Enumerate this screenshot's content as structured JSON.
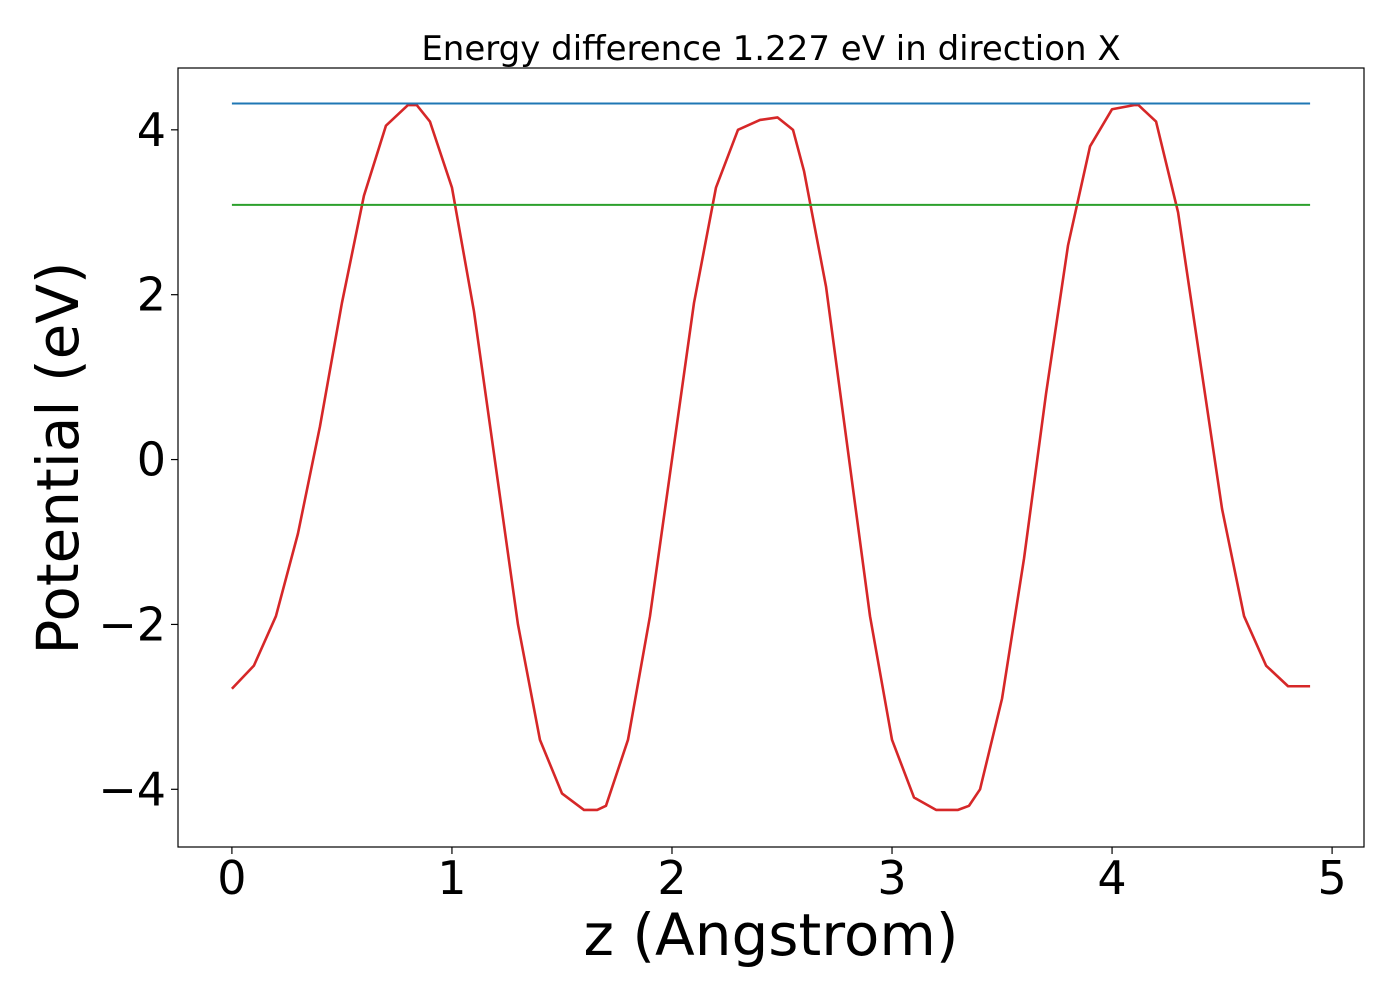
{
  "chart_data": {
    "type": "line",
    "title": "Energy difference 1.227 eV in direction X",
    "xlabel": "z (Angstrom)",
    "ylabel": "Potential (eV)",
    "xlim": [
      -0.245,
      5.145
    ],
    "ylim": [
      -4.7,
      4.75
    ],
    "xticks": [
      0,
      1,
      2,
      3,
      4,
      5
    ],
    "xtick_labels": [
      "0",
      "1",
      "2",
      "3",
      "4",
      "5"
    ],
    "yticks": [
      -4,
      -2,
      0,
      2,
      4
    ],
    "ytick_labels": [
      "−4",
      "−2",
      "0",
      "2",
      "4"
    ],
    "grid": false,
    "legend": "none",
    "series": [
      {
        "color": "#d62728",
        "x": [
          0.0,
          0.1,
          0.2,
          0.3,
          0.4,
          0.5,
          0.6,
          0.7,
          0.8,
          0.84,
          0.9,
          1.0,
          1.1,
          1.2,
          1.3,
          1.4,
          1.5,
          1.6,
          1.66,
          1.7,
          1.8,
          1.9,
          2.0,
          2.1,
          2.2,
          2.3,
          2.4,
          2.48,
          2.55,
          2.6,
          2.7,
          2.8,
          2.9,
          3.0,
          3.1,
          3.2,
          3.3,
          3.35,
          3.4,
          3.5,
          3.6,
          3.7,
          3.8,
          3.9,
          4.0,
          4.1,
          4.12,
          4.2,
          4.3,
          4.4,
          4.5,
          4.6,
          4.7,
          4.8,
          4.9
        ],
        "y": [
          -2.78,
          -2.5,
          -1.9,
          -0.9,
          0.4,
          1.9,
          3.2,
          4.05,
          4.3,
          4.3,
          4.1,
          3.3,
          1.8,
          -0.1,
          -2.0,
          -3.4,
          -4.05,
          -4.25,
          -4.25,
          -4.2,
          -3.4,
          -1.9,
          0.0,
          1.9,
          3.3,
          4.0,
          4.12,
          4.15,
          4.0,
          3.5,
          2.1,
          0.1,
          -1.9,
          -3.4,
          -4.1,
          -4.25,
          -4.25,
          -4.2,
          -4.0,
          -2.9,
          -1.2,
          0.8,
          2.6,
          3.8,
          4.25,
          4.3,
          4.3,
          4.1,
          3.0,
          1.2,
          -0.6,
          -1.9,
          -2.5,
          -2.75,
          -2.75
        ]
      },
      {
        "color": "#1f77b4",
        "x": [
          0.0,
          4.9
        ],
        "y": [
          4.32,
          4.32
        ]
      },
      {
        "color": "#2ca02c",
        "x": [
          0.0,
          4.9
        ],
        "y": [
          3.09,
          3.09
        ]
      }
    ]
  }
}
